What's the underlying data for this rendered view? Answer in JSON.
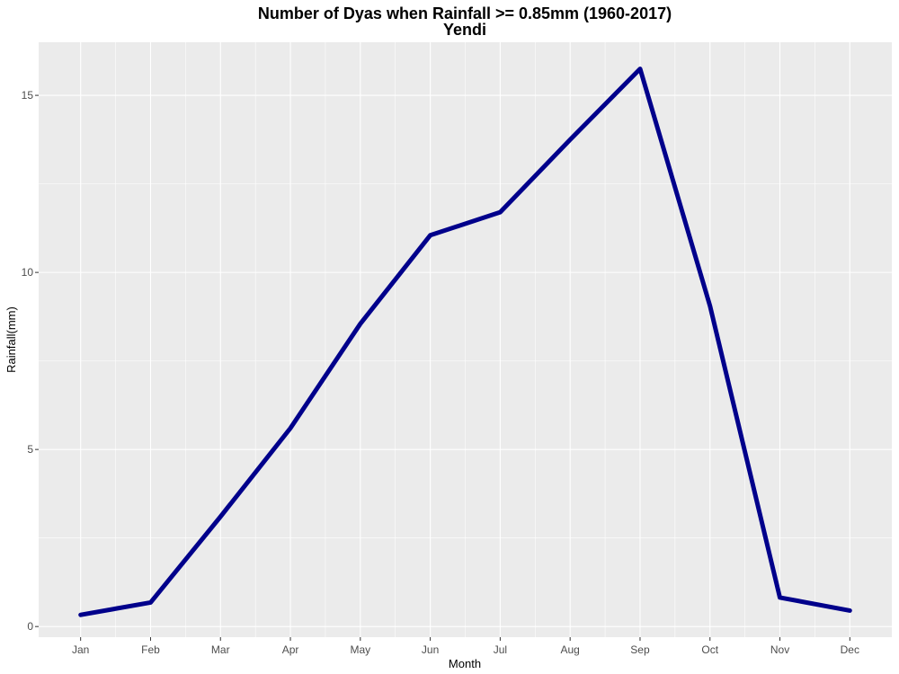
{
  "chart_data": {
    "type": "line",
    "title": "Number of Dyas when Rainfall >= 0.85mm (1960-2017)",
    "subtitle": "Yendi",
    "xlabel": "Month",
    "ylabel": "Rainfall(mm)",
    "categories": [
      "Jan",
      "Feb",
      "Mar",
      "Apr",
      "May",
      "Jun",
      "Jul",
      "Aug",
      "Sep",
      "Oct",
      "Nov",
      "Dec"
    ],
    "values": [
      0.33,
      0.68,
      3.1,
      5.6,
      8.55,
      11.05,
      11.7,
      13.75,
      15.75,
      9.05,
      0.82,
      0.45
    ],
    "yticks": [
      0,
      5,
      10,
      15
    ],
    "ylim": [
      -0.3,
      16.5
    ],
    "grid": true,
    "line_color": "#00008b",
    "panel_color": "#ebebeb",
    "grid_color": "#ffffff"
  }
}
